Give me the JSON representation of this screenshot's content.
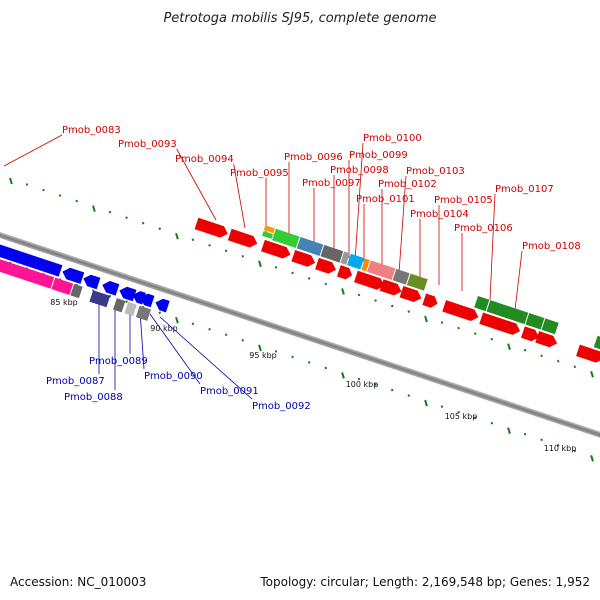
{
  "title": "Petrotoga mobilis SJ95, complete genome",
  "footer": {
    "accession": "Accession: NC_010003",
    "info": "Topology: circular; Length: 2,169,548 bp; Genes: 1,952"
  },
  "colors": {
    "forward_label": "#cc0000",
    "reverse_label": "#0000aa",
    "scale_tick": "#1a7a1a",
    "backbone": "#8a8a8a"
  },
  "scale_labels": [
    "85 kbp",
    "90 kbp",
    "95 kbp",
    "100 kbp",
    "105 kbp",
    "110 kbp"
  ],
  "forward_genes": [
    "Pmob_0083",
    "Pmob_0093",
    "Pmob_0094",
    "Pmob_0095",
    "Pmob_0096",
    "Pmob_0097",
    "Pmob_0098",
    "Pmob_0099",
    "Pmob_0100",
    "Pmob_0101",
    "Pmob_0102",
    "Pmob_0103",
    "Pmob_0104",
    "Pmob_0105",
    "Pmob_0106",
    "Pmob_0107",
    "Pmob_0108"
  ],
  "reverse_genes": [
    "Pmob_0087",
    "Pmob_0088",
    "Pmob_0089",
    "Pmob_0090",
    "Pmob_0091",
    "Pmob_0092"
  ]
}
